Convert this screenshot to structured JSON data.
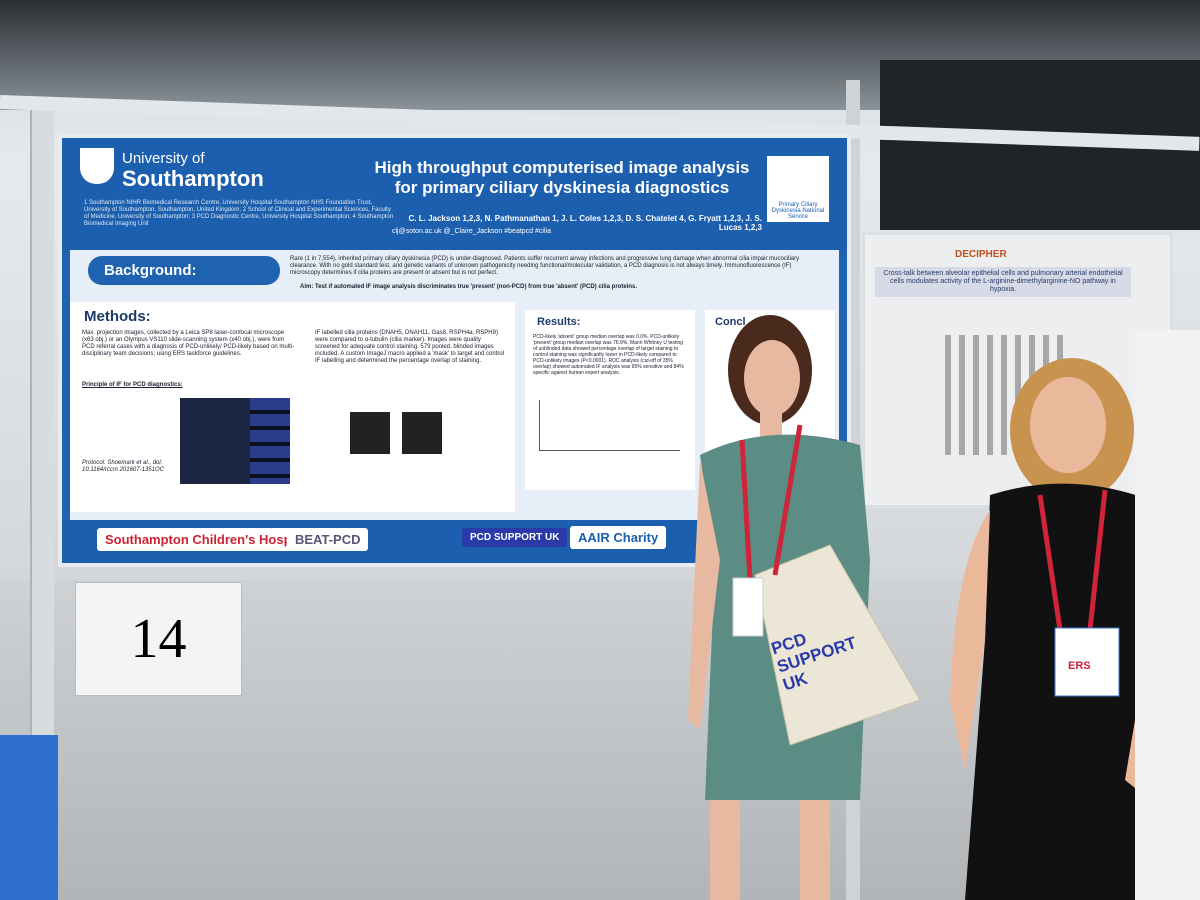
{
  "poster": {
    "university_line1": "University of",
    "university_line2": "Southampton",
    "title_line1": "High throughput computerised image analysis",
    "title_line2": "for primary ciliary dyskinesia diagnostics",
    "authors": "C. L. Jackson 1,2,3, N. Pathmanathan 1, J. L. Coles 1,2,3, D. S. Chatelet 4, G. Fryatt 1,2,3, J. S. Lucas 1,2,3",
    "contact": "clj@soton.ac.uk  @_Claire_Jackson #beatpcd #cilia",
    "affiliations": "1 Southampton NIHR Biomedical Research Centre, University Hospital Southampton NHS Foundation Trust, University of Southampton, Southampton, United Kingdom; 2 School of Clinical and Experimental Sciences, Faculty of Medicine, University of Southampton; 3 PCD Diagnostic Centre, University Hospital Southampton; 4 Southampton Biomedical Imaging Unit",
    "national_service": "Primary Ciliary Dyskinesia National Service",
    "background_heading": "Background:",
    "background_text": "Rare (1 in 7,554), inherited primary ciliary dyskinesia (PCD) is under-diagnosed. Patients suffer recurrent airway infections and progressive lung damage when abnormal cilia impair mucociliary clearance. With no gold standard test, and genetic variants of unknown pathogenicity needing functional/molecular validation, a PCD diagnosis is not always timely. Immunofluorescence (IF) microscopy determines if cilia proteins are present or absent but is not perfect.",
    "aim": "Aim: Test if automated IF image analysis discriminates true 'present' (non-PCD) from true 'absent' (PCD) cilia proteins.",
    "methods_heading": "Methods:",
    "methods_text": "Max. projection images, collected by a Leica SP8 laser-confocal microscope (x63 obj.) or an Olympus VS110 slide-scanning system (x40 obj.), were from PCD referral cases with a diagnosis of PCD-unlikely/ PCD-likely based on multi-disciplinary team decisions; using ERS taskforce guidelines.",
    "methods_subheading": "Principle of IF for PCD diagnostics:",
    "protocol": "Protocol: Shoemark et al., doi: 10.1164/rccm 201607-1351OC",
    "methods_text2": "IF labelled cilia proteins (DNAH5, DNAH11, Gas8, RSPH4a, RSPH9) were compared to α-tubulin (cilia marker). Images were quality screened for adequate control staining. 579 pooled, blinded images included. A custom ImageJ macro applied a 'mask' to target and control IF labelling and determined the percentage overlap of staining.",
    "results_heading": "Results:",
    "results_text": "PCD-likely 'absent' group median overlap was 0.0%. PCD-unlikely 'present' group median overlap was 76.9%. Mann Whitney U testing of unblinded data showed percentage overlap of target staining to control staining was significantly lower in PCD-likely compared to PCD-unlikely images (P<0.0001). ROC analysis (cut-off of 35% overlap) showed automated IF analysis was 95% sensitive and 84% specific against human expert analysis.",
    "conclusion_heading": "Concl",
    "logo1": "Southampton Children's Hospital",
    "logo2": "BEAT-PCD",
    "logo3": "PCD SUPPORT UK",
    "logo4": "AAIR Charity"
  },
  "board_number": "14",
  "second_poster": {
    "brand": "DECIPHER",
    "title": "Cross-talk between alveolar epithelial cells and pulmonary arterial endothelial cells modulates activity of the L-arginine-dimethylarginine-NO pathway in hypoxia."
  },
  "tote_bag": "PCD SUPPORT UK",
  "badge": "ERS"
}
